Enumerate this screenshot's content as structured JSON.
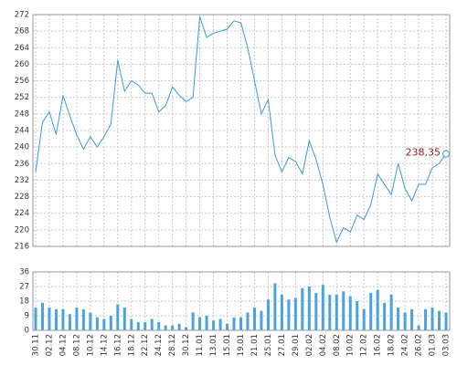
{
  "chart_data": [
    {
      "type": "line",
      "series": [
        {
          "color": "#3a9ad9",
          "values": [
            234,
            246,
            248.5,
            243,
            252.5,
            247.5,
            243,
            239.5,
            242.5,
            240,
            242.5,
            245.5,
            261,
            253.5,
            256,
            255,
            253,
            253,
            248.5,
            250,
            254.5,
            252.5,
            251,
            252,
            271.5,
            266.5,
            267.5,
            268,
            268.5,
            270.5,
            270,
            264,
            256,
            248,
            251.5,
            238,
            234,
            237.5,
            236.5,
            233.5,
            241.5,
            237,
            231,
            223,
            217,
            220.5,
            219.5,
            223.5,
            222.5,
            226,
            233.5,
            231,
            228.5,
            236,
            230,
            227,
            231,
            231,
            235,
            236,
            238.35
          ],
          "value_labels": [
            null,
            null,
            null,
            null,
            null,
            null,
            null,
            null,
            null,
            null,
            null,
            null,
            null,
            null,
            null,
            null,
            null,
            null,
            null,
            null,
            null,
            null,
            null,
            null,
            null,
            null,
            null,
            null,
            null,
            null,
            null,
            null,
            null,
            null,
            null,
            null,
            null,
            null,
            null,
            null,
            null,
            null,
            null,
            null,
            null,
            null,
            null,
            null,
            null,
            null,
            null,
            null,
            null,
            null,
            null,
            null,
            null,
            null,
            null,
            null,
            "238,35"
          ],
          "label_color": "#8b1a1a"
        }
      ],
      "ylim": [
        216,
        272
      ],
      "yticks": [
        216,
        220,
        224,
        228,
        232,
        236,
        240,
        244,
        248,
        252,
        256,
        260,
        264,
        268,
        272
      ],
      "grid": true
    },
    {
      "type": "bar",
      "categories": [
        "30.11",
        null,
        "02.12",
        null,
        "04.12",
        null,
        "08.12",
        null,
        "10.12",
        null,
        "14.12",
        null,
        "16.12",
        null,
        "18.12",
        null,
        "22.12",
        null,
        "24.12",
        null,
        "28.12",
        null,
        "30.12",
        null,
        "11.01",
        null,
        "13.01",
        null,
        "15.01",
        null,
        "19.01",
        null,
        "21.01",
        null,
        "25.01",
        null,
        "27.01",
        null,
        "29.01",
        null,
        "02.02",
        null,
        "04.02",
        null,
        "08.02",
        null,
        "10.02",
        null,
        "12.02",
        null,
        "16.02",
        null,
        "18.02",
        null,
        "24.02",
        null,
        "26.02",
        null,
        "01.03",
        null,
        "03.03"
      ],
      "values": [
        14,
        17,
        14,
        13,
        13,
        10,
        14,
        13,
        11,
        8,
        7,
        9,
        16,
        14,
        7,
        5,
        5,
        7,
        5,
        3,
        3,
        4,
        2,
        11,
        8,
        9,
        6,
        7,
        4,
        8,
        8,
        11,
        14,
        12,
        19,
        29,
        22,
        19,
        20,
        26,
        27,
        23,
        28,
        22,
        22,
        24,
        21,
        18,
        13,
        23,
        25,
        17,
        22,
        14,
        11,
        13,
        3,
        13,
        14,
        12,
        11
      ],
      "color": "#4aa3df",
      "ylim": [
        0,
        36
      ],
      "yticks": [
        0,
        9,
        18,
        27,
        36
      ],
      "grid": true
    }
  ]
}
